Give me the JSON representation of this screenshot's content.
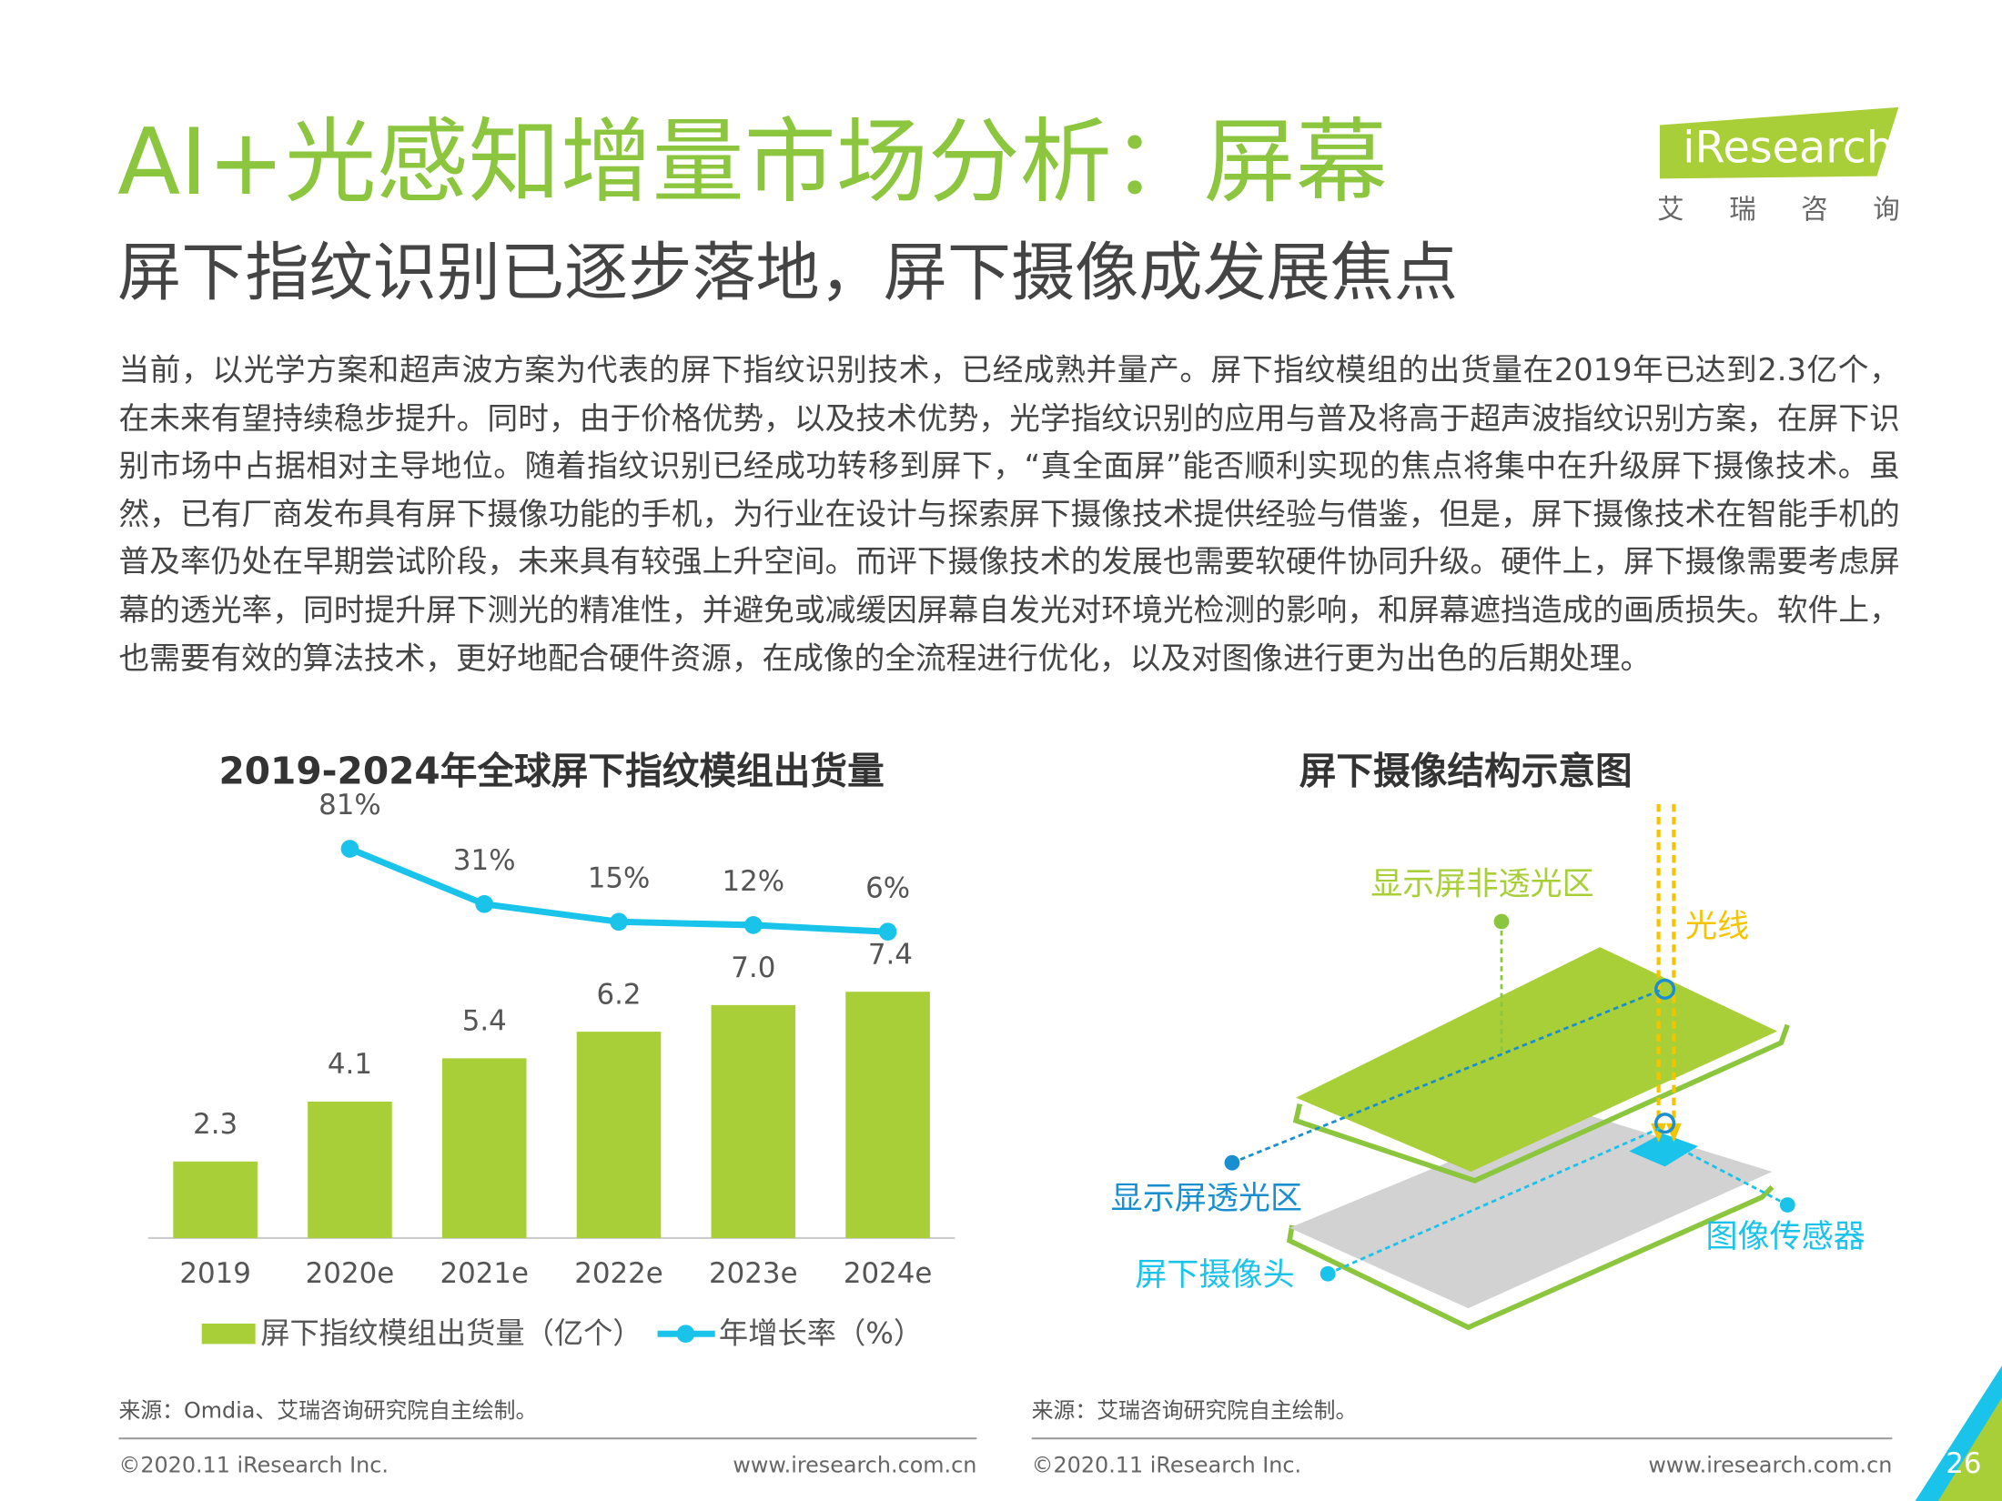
{
  "header": {
    "title": "AI+光感知增量市场分析：屏幕",
    "subtitle": "屏下指纹识别已逐步落地，屏下摄像成发展焦点",
    "logo": "iResearch",
    "logo_sub": "艾 瑞 咨 询"
  },
  "body": "当前，以光学方案和超声波方案为代表的屏下指纹识别技术，已经成熟并量产。屏下指纹模组的出货量在2019年已达到2.3亿个，在未来有望持续稳步提升。同时，由于价格优势，以及技术优势，光学指纹识别的应用与普及将高于超声波指纹识别方案，在屏下识别市场中占据相对主导地位。随着指纹识别已经成功转移到屏下，“真全面屏”能否顺利实现的焦点将集中在升级屏下摄像技术。虽然，已有厂商发布具有屏下摄像功能的手机，为行业在设计与探索屏下摄像技术提供经验与借鉴，但是，屏下摄像技术在智能手机的普及率仍处在早期尝试阶段，未来具有较强上升空间。而评下摄像技术的发展也需要软硬件协同升级。硬件上，屏下摄像需要考虑屏幕的透光率，同时提升屏下测光的精准性，并避免或减缓因屏幕自发光对环境光检测的影响，和屏幕遮挡造成的画质损失。软件上，也需要有效的算法技术，更好地配合硬件资源，在成像的全流程进行优化，以及对图像进行更为出色的后期处理。",
  "chart_data": {
    "type": "bar-line",
    "title": "2019-2024年全球屏下指纹模组出货量",
    "categories": [
      "2019",
      "2020e",
      "2021e",
      "2022e",
      "2023e",
      "2024e"
    ],
    "series": [
      {
        "name": "屏下指纹模组出货量（亿个）",
        "type": "bar",
        "color": "#a9cf38",
        "values": [
          2.3,
          4.1,
          5.4,
          6.2,
          7.0,
          7.4
        ],
        "value_labels": [
          "2.3",
          "4.1",
          "5.4",
          "6.2",
          "7.0",
          "7.4"
        ]
      },
      {
        "name": "年增长率（%）",
        "type": "line",
        "color": "#19c3ea",
        "values": [
          null,
          81,
          31,
          15,
          12,
          6
        ],
        "value_labels": [
          null,
          "81%",
          "31%",
          "15%",
          "12%",
          "6%"
        ]
      }
    ]
  },
  "diagram": {
    "title": "屏下摄像结构示意图",
    "labels": {
      "opaque": "显示屏非透光区",
      "light": "光线",
      "transparent": "显示屏透光区",
      "sensor": "图像传感器",
      "camera": "屏下摄像头"
    }
  },
  "footer": {
    "source_left": "来源：Omdia、艾瑞咨询研究院自主绘制。",
    "source_right": "来源：艾瑞咨询研究院自主绘制。",
    "copyright_left": "©2020.11 iResearch Inc.",
    "url_left": "www.iresearch.com.cn",
    "copyright_right": "©2020.11 iResearch Inc.",
    "url_right": "www.iresearch.com.cn",
    "page": "26"
  }
}
